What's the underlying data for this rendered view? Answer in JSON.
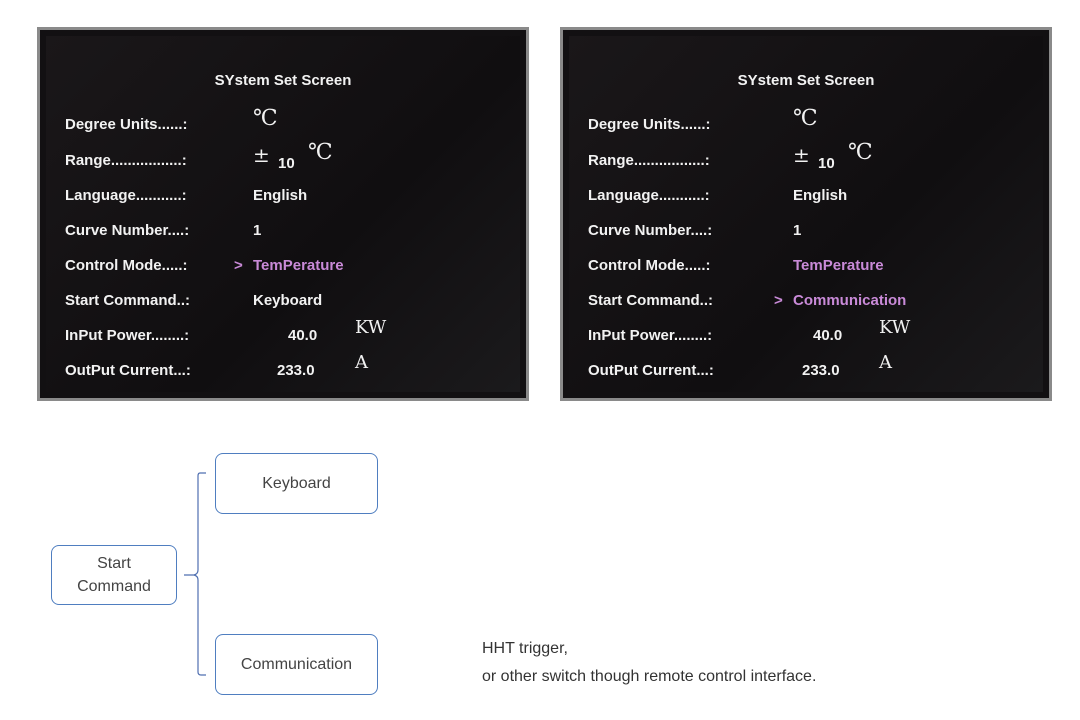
{
  "screens": [
    {
      "title": "SYstem Set Screen",
      "rows": [
        {
          "label": "Degree Units......:",
          "value": "℃"
        },
        {
          "label": "Range.................:",
          "prefix": "±",
          "value": "10",
          "unit": "℃"
        },
        {
          "label": "Language...........:",
          "value": "English"
        },
        {
          "label": "Curve Number....:",
          "value": "1"
        },
        {
          "label": "Control Mode.....:",
          "value": "TemPerature",
          "cursor": ">"
        },
        {
          "label": "Start Command..:",
          "value": "Keyboard"
        },
        {
          "label": "InPut Power........:",
          "value": "40.0",
          "unit": "KW"
        },
        {
          "label": "OutPut Current...:",
          "value": "233.0",
          "unit": "A"
        }
      ]
    },
    {
      "title": "SYstem Set Screen",
      "rows": [
        {
          "label": "Degree Units......:",
          "value": "℃"
        },
        {
          "label": "Range.................:",
          "prefix": "±",
          "value": "10",
          "unit": "℃"
        },
        {
          "label": "Language...........:",
          "value": "English"
        },
        {
          "label": "Curve Number....:",
          "value": "1"
        },
        {
          "label": "Control Mode.....:",
          "value": "TemPerature"
        },
        {
          "label": "Start Command..:",
          "value": "Communication",
          "cursor": ">"
        },
        {
          "label": "InPut Power........:",
          "value": "40.0",
          "unit": "KW"
        },
        {
          "label": "OutPut Current...:",
          "value": "233.0",
          "unit": "A"
        }
      ]
    }
  ],
  "diagram": {
    "root": "Start Command",
    "options": [
      "Keyboard",
      "Communication"
    ],
    "note_lines": [
      "HHT trigger,",
      "or other switch though remote control interface."
    ]
  },
  "colors": {
    "highlight": "#c98ad8",
    "box_border": "#4f7ec0"
  }
}
